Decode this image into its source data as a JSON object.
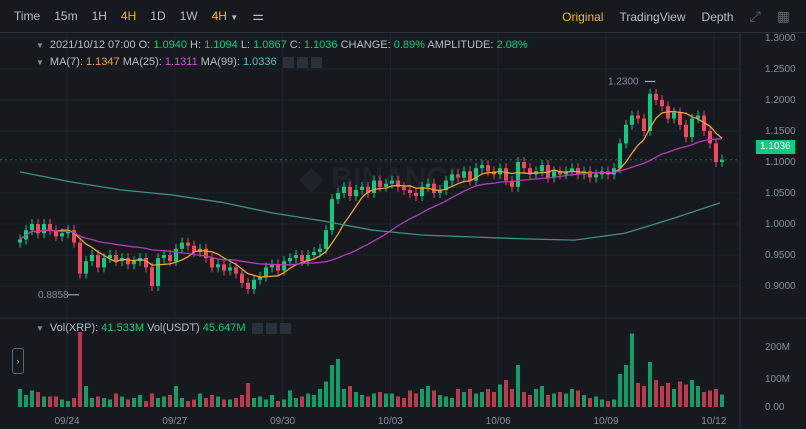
{
  "toolbar": {
    "intervals": [
      "Time",
      "15m",
      "1H",
      "4H",
      "1D",
      "1W"
    ],
    "active": "4H",
    "dropdown": "4H",
    "views": [
      "Original",
      "TradingView",
      "Depth"
    ],
    "active_view": "Original"
  },
  "ohlc": {
    "date": "2021/10/12 07:00",
    "o_label": "O:",
    "o": "1.0940",
    "h_label": "H:",
    "h": "1.1094",
    "l_label": "L:",
    "l": "1.0867",
    "c_label": "C:",
    "c": "1.1036",
    "change_label": "CHANGE:",
    "change": "0.89%",
    "amp_label": "AMPLITUDE:",
    "amp": "2.08%"
  },
  "ma": {
    "ma7_label": "MA(7):",
    "ma7": "1.1347",
    "ma25_label": "MA(25):",
    "ma25": "1.1311",
    "ma99_label": "MA(99):",
    "ma99": "1.0336"
  },
  "vol": {
    "xrp_label": "Vol(XRP):",
    "xrp": "41.533M",
    "usdt_label": "Vol(USDT)",
    "usdt": "45.647M"
  },
  "current_price": "1.1036",
  "high_marker": "1.2300",
  "low_marker": "0.8858",
  "colors": {
    "up": "#0ecb81",
    "down": "#f6465d",
    "ma7": "#f0a23b",
    "ma25": "#b33bb3",
    "ma99": "#3d8f88",
    "accent": "#f0b90b"
  },
  "chart_data": {
    "type": "candlestick",
    "price_ticks": [
      "1.3000",
      "1.2500",
      "1.2000",
      "1.1500",
      "1.1000",
      "1.0500",
      "1.0000",
      "0.9500",
      "0.9000"
    ],
    "volume_ticks": [
      "200M",
      "100M",
      "0.00"
    ],
    "x_ticks": [
      "09/24",
      "09/27",
      "09/30",
      "10/03",
      "10/06",
      "10/09",
      "10/12"
    ],
    "ylim": [
      0.87,
      1.3
    ],
    "closes": [
      0.975,
      0.99,
      1.0,
      0.985,
      1.0,
      0.99,
      0.98,
      0.985,
      0.99,
      0.97,
      0.92,
      0.94,
      0.95,
      0.93,
      0.945,
      0.95,
      0.94,
      0.945,
      0.935,
      0.94,
      0.945,
      0.93,
      0.9,
      0.945,
      0.95,
      0.94,
      0.96,
      0.97,
      0.965,
      0.955,
      0.96,
      0.945,
      0.93,
      0.935,
      0.925,
      0.93,
      0.92,
      0.905,
      0.895,
      0.91,
      0.915,
      0.93,
      0.935,
      0.925,
      0.94,
      0.945,
      0.95,
      0.94,
      0.95,
      0.955,
      0.96,
      0.99,
      1.04,
      1.05,
      1.06,
      1.045,
      1.055,
      1.06,
      1.05,
      1.07,
      1.06,
      1.065,
      1.07,
      1.06,
      1.055,
      1.05,
      1.045,
      1.06,
      1.065,
      1.05,
      1.055,
      1.07,
      1.08,
      1.075,
      1.085,
      1.07,
      1.09,
      1.095,
      1.085,
      1.08,
      1.09,
      1.07,
      1.06,
      1.1,
      1.09,
      1.08,
      1.085,
      1.095,
      1.075,
      1.085,
      1.08,
      1.085,
      1.09,
      1.08,
      1.085,
      1.075,
      1.08,
      1.085,
      1.08,
      1.09,
      1.13,
      1.16,
      1.175,
      1.17,
      1.15,
      1.21,
      1.2,
      1.19,
      1.17,
      1.18,
      1.16,
      1.14,
      1.17,
      1.175,
      1.15,
      1.13,
      1.1,
      1.1036
    ],
    "volumes_m": [
      60,
      40,
      55,
      50,
      35,
      35,
      35,
      25,
      20,
      30,
      250,
      70,
      30,
      35,
      30,
      25,
      45,
      35,
      25,
      30,
      40,
      20,
      45,
      30,
      35,
      40,
      70,
      30,
      20,
      25,
      45,
      30,
      40,
      35,
      25,
      25,
      30,
      40,
      80,
      30,
      35,
      25,
      40,
      20,
      25,
      55,
      30,
      35,
      45,
      40,
      60,
      85,
      140,
      160,
      60,
      70,
      50,
      40,
      35,
      45,
      50,
      45,
      45,
      35,
      30,
      55,
      45,
      60,
      70,
      55,
      40,
      35,
      30,
      60,
      50,
      60,
      45,
      50,
      60,
      50,
      75,
      90,
      60,
      140,
      50,
      40,
      60,
      70,
      40,
      45,
      50,
      45,
      60,
      55,
      40,
      30,
      35,
      25,
      20,
      25,
      110,
      140,
      245,
      80,
      70,
      150,
      90,
      70,
      80,
      60,
      85,
      75,
      90,
      70,
      50,
      55,
      60,
      41.5
    ],
    "ma99_every10": [
      1.084,
      1.068,
      1.055,
      1.047,
      1.035,
      1.018,
      1.005,
      0.99,
      0.982,
      0.979,
      0.976,
      0.974,
      0.985,
      1.01,
      1.034
    ]
  }
}
